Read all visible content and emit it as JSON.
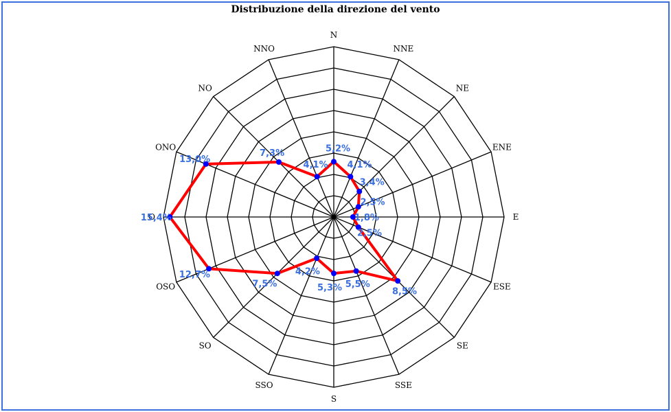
{
  "chart_data": {
    "type": "radar",
    "title": "Distribuzione della direzione del vento",
    "categories": [
      "N",
      "NNE",
      "NE",
      "ENE",
      "E",
      "ESE",
      "SE",
      "SSE",
      "S",
      "SSO",
      "SO",
      "OSO",
      "O",
      "ONO",
      "NO",
      "NNO"
    ],
    "values": [
      5.2,
      4.1,
      3.4,
      2.5,
      1.8,
      2.5,
      8.5,
      5.5,
      5.3,
      4.2,
      7.5,
      12.7,
      15.4,
      13.0,
      7.3,
      4.1
    ],
    "value_labels": [
      "5,2%",
      "4,1%",
      "3,4%",
      "2,5%",
      "1,8%",
      "2,5%",
      "8,5%",
      "5,5%",
      "5,3%",
      "4,2%",
      "7,5%",
      "12,7%",
      "15,4%",
      "13,0%",
      "7,3%",
      "4,1%"
    ],
    "rlim": [
      0,
      16
    ],
    "rings": 8,
    "grid": true,
    "colors": {
      "line": "#ff0000",
      "marker": "#0000ff",
      "label": "#3a6fe0",
      "frame": "#3a6fe0"
    }
  }
}
